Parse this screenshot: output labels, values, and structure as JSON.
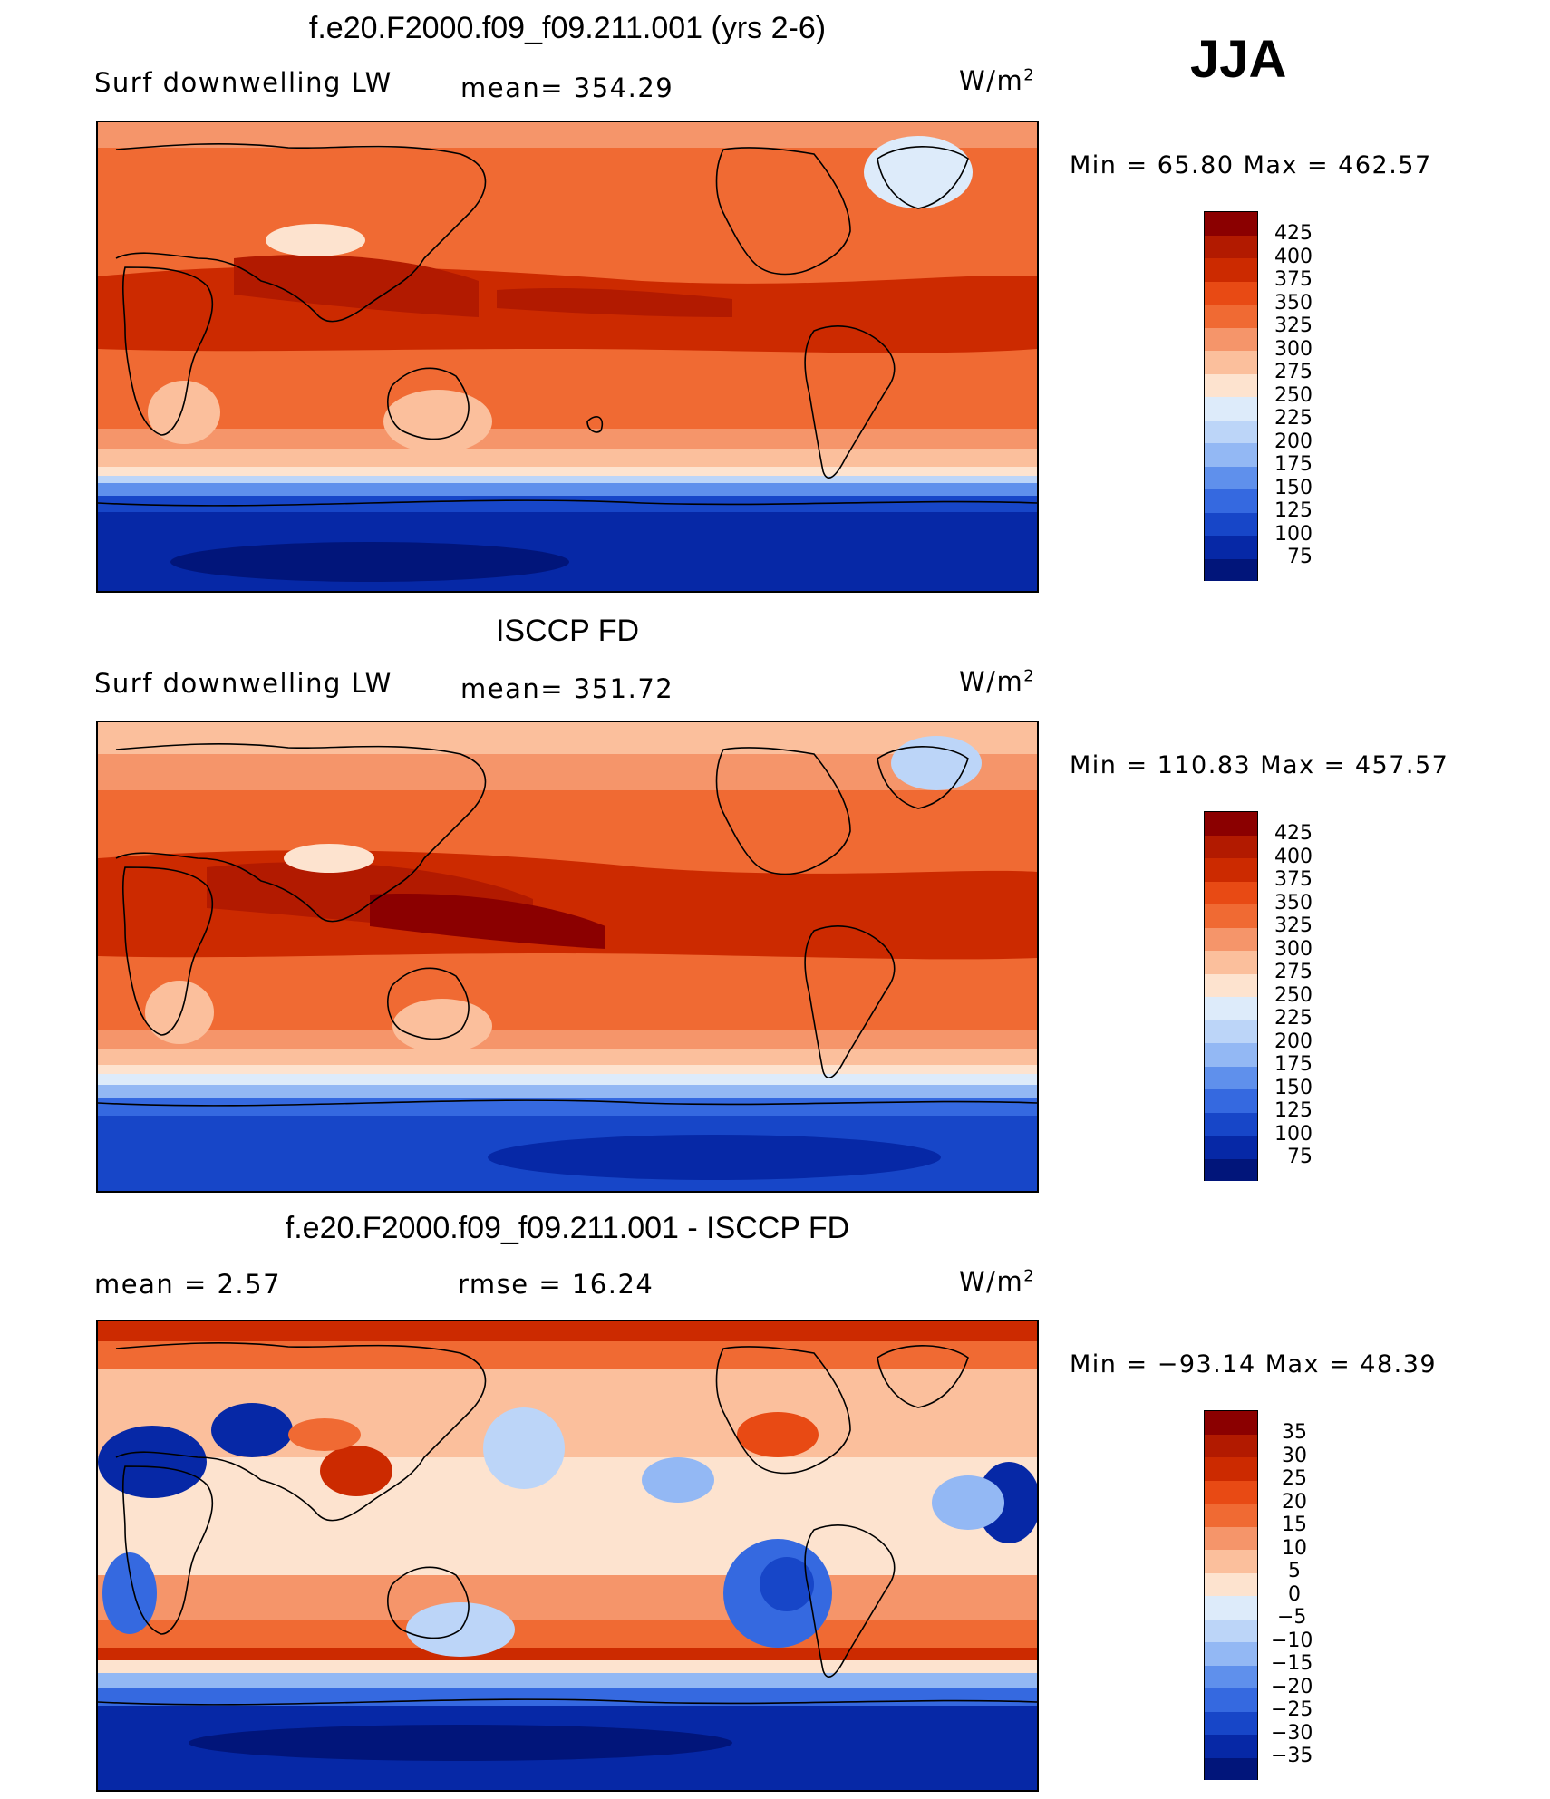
{
  "season": "JJA",
  "units_label": "W/m",
  "units_sup": "2",
  "panels": [
    {
      "title": "f.e20.F2000.f09_f09.211.001 (yrs 2-6)",
      "left_label": "Surf  downwelling  LW",
      "center_label": "mean=  354.29",
      "minmax": "Min  =    65.80  Max  =  462.57",
      "colorbar_labels": [
        "425",
        "400",
        "375",
        "350",
        "325",
        "300",
        "275",
        "250",
        "225",
        "200",
        "175",
        "150",
        "125",
        "100",
        "75"
      ]
    },
    {
      "title": "ISCCP FD",
      "left_label": "Surf  downwelling  LW",
      "center_label": "mean=  351.72",
      "minmax": "Min  =  110.83  Max  =  457.57",
      "colorbar_labels": [
        "425",
        "400",
        "375",
        "350",
        "325",
        "300",
        "275",
        "250",
        "225",
        "200",
        "175",
        "150",
        "125",
        "100",
        "75"
      ]
    },
    {
      "title": "f.e20.F2000.f09_f09.211.001 - ISCCP FD",
      "left_label": "mean  =      2.57",
      "center_label": "rmse  =    16.24",
      "minmax": "Min  =  −93.14  Max  =    48.39",
      "colorbar_labels": [
        "35",
        "30",
        "25",
        "20",
        "15",
        "10",
        "5",
        "0",
        "−5",
        "−10",
        "−15",
        "−20",
        "−25",
        "−30",
        "−35"
      ]
    }
  ],
  "colors": {
    "abs_scale": [
      "#8b0000",
      "#b21a00",
      "#cc2a00",
      "#e84a14",
      "#f06a33",
      "#f5956a",
      "#fbbf9c",
      "#fde3cf",
      "#ddebfa",
      "#bcd5f8",
      "#93b8f4",
      "#5f90ec",
      "#3569e0",
      "#1746c8",
      "#0628a6",
      "#01157a"
    ],
    "diff_scale": [
      "#8b0000",
      "#b21a00",
      "#cc2a00",
      "#e84a14",
      "#f06a33",
      "#f5956a",
      "#fbbf9c",
      "#fde3cf",
      "#ddebfa",
      "#bcd5f8",
      "#93b8f4",
      "#5f90ec",
      "#3569e0",
      "#1746c8",
      "#0628a6",
      "#01157a"
    ]
  }
}
